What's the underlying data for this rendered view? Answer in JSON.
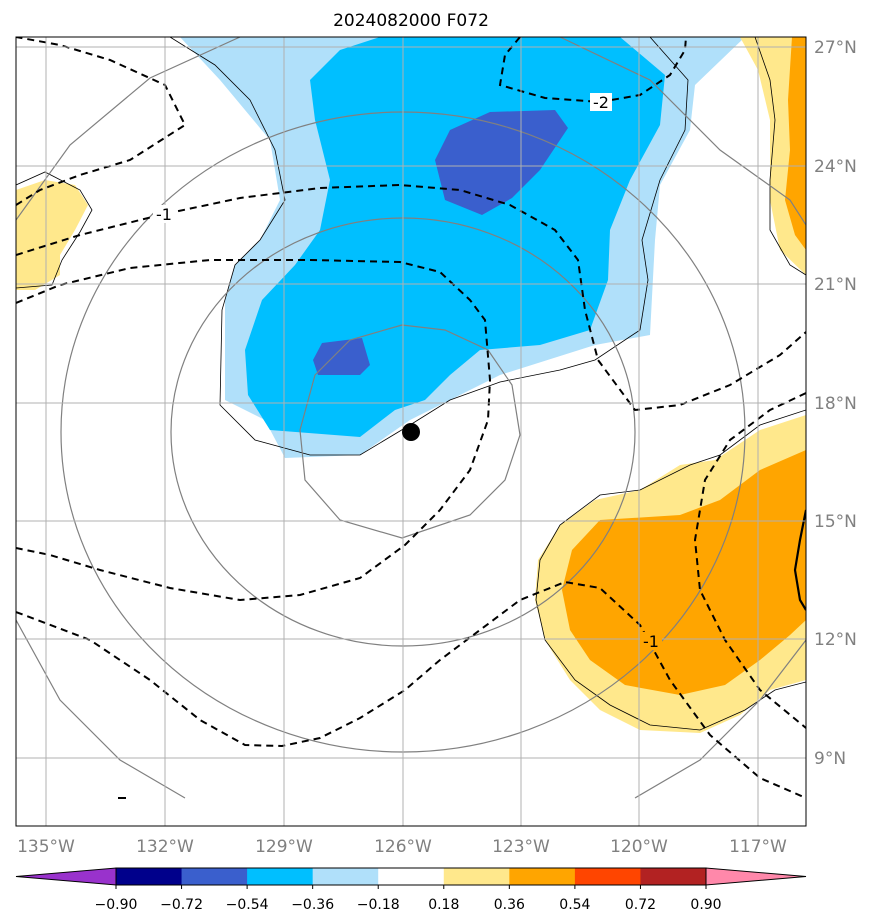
{
  "title": "2024082000 F072",
  "map": {
    "lon_ticks": [
      "135°W",
      "132°W",
      "129°W",
      "126°W",
      "123°W",
      "120°W",
      "117°W"
    ],
    "lat_ticks": [
      "27°N",
      "24°N",
      "21°N",
      "18°N",
      "15°N",
      "12°N",
      "9°N"
    ],
    "extent": {
      "lon": [
        -135.8,
        -115.8
      ],
      "lat": [
        7.5,
        27.5
      ]
    },
    "grid": true,
    "contour_labels": [
      "-2",
      "-1",
      "-1"
    ],
    "storm_center": {
      "lon": -126.0,
      "lat": 17.2,
      "symbol": "black-dot"
    }
  },
  "colorbar": {
    "levels": [
      "−0.90",
      "−0.72",
      "−0.54",
      "−0.36",
      "−0.18",
      "0.18",
      "0.36",
      "0.54",
      "0.72",
      "0.90"
    ],
    "colors": [
      "#9932cc",
      "#00008b",
      "#3a5fcd",
      "#00bfff",
      "#b0e0fa",
      "#ffffff",
      "#ffe88c",
      "#ffa500",
      "#ff4500",
      "#b22222",
      "#ff88aa"
    ],
    "extend": "both"
  }
}
